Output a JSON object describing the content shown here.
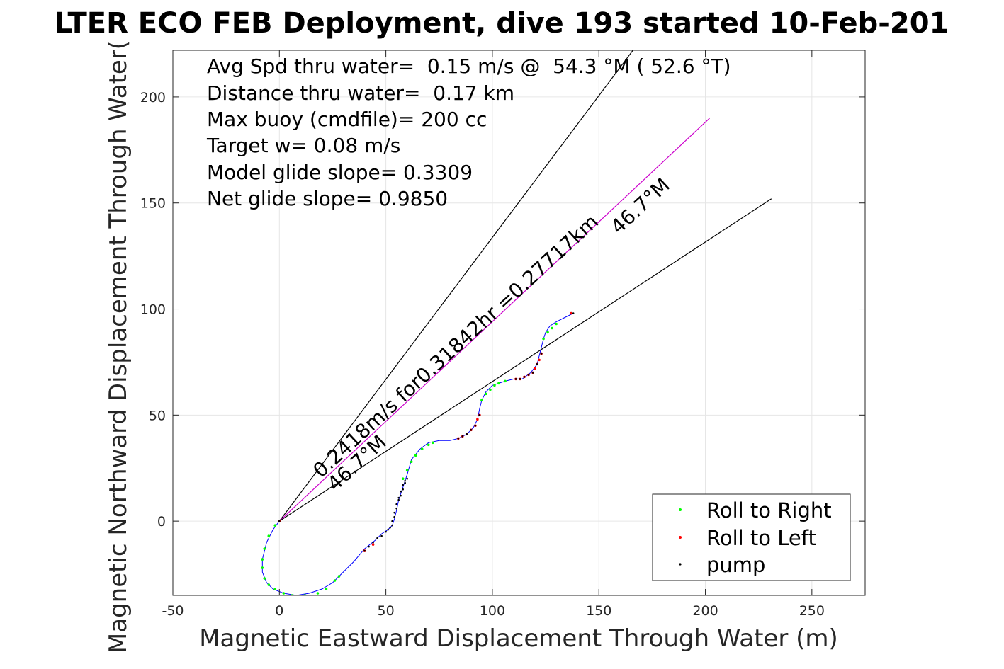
{
  "chart_data": {
    "type": "line",
    "title": "LTER ECO FEB Deployment, dive 193 started 10-Feb-201",
    "xlabel": "Magnetic Eastward Displacement Through Water (m)",
    "ylabel": "Magnetic Northward Displacement Through Water(",
    "xlim": [
      -50,
      275
    ],
    "ylim": [
      -35,
      222
    ],
    "x_ticks": [
      -50,
      0,
      50,
      100,
      150,
      200,
      250
    ],
    "x_tick_labels": [
      "-50",
      "0",
      "50",
      "100",
      "150",
      "200",
      "250"
    ],
    "y_ticks": [
      0,
      50,
      100,
      150,
      200
    ],
    "y_tick_labels": [
      "0",
      "50",
      "100",
      "150",
      "200"
    ],
    "grid": true,
    "legend_position": "bottom-right",
    "info_lines": [
      "Avg Spd thru water=  0.15 m/s @  54.3 °M ( 52.6 °T)",
      "Distance thru water=  0.17 km",
      "Max buoy (cmdfile)= 200 cc",
      "Target w= 0.08 m/s",
      "Model glide slope= 0.3309",
      "Net glide slope= 0.9850"
    ],
    "annotations": {
      "track_speed": "0.2418m/s for0.31842hr =0.27717km",
      "heading_lower": "46.7°M",
      "heading_upper": "46.7°M"
    },
    "reference_lines": [
      {
        "color": "#000000",
        "x": [
          0,
          166
        ],
        "y": [
          0,
          222
        ]
      },
      {
        "color": "#cc00cc",
        "x": [
          0,
          202
        ],
        "y": [
          0,
          190
        ]
      },
      {
        "color": "#000000",
        "x": [
          0,
          231
        ],
        "y": [
          0,
          152
        ]
      }
    ],
    "track": {
      "color": "#0000ff",
      "x": [
        0,
        -3,
        -6,
        -8,
        -8,
        -6,
        -3,
        2,
        8,
        14,
        20,
        25,
        30,
        35,
        40,
        45,
        48,
        51,
        53,
        54,
        55,
        56,
        58,
        60,
        62,
        66,
        70,
        75,
        80,
        84,
        88,
        91,
        93,
        94,
        95,
        97,
        100,
        103,
        106,
        110,
        114,
        118,
        121,
        122,
        123,
        124,
        125,
        127,
        130,
        134,
        138
      ],
      "y": [
        0,
        -4,
        -10,
        -18,
        -24,
        -29,
        -32,
        -34,
        -35,
        -34,
        -32,
        -29,
        -24,
        -19,
        -13,
        -9,
        -6,
        -4,
        -2,
        1,
        5,
        10,
        16,
        22,
        29,
        34,
        37,
        38,
        38,
        39,
        41,
        44,
        48,
        53,
        57,
        61,
        64,
        65,
        66,
        67,
        67,
        70,
        74,
        78,
        82,
        86,
        89,
        92,
        94,
        96,
        98
      ]
    },
    "series": [
      {
        "name": "Roll to Right",
        "color": "#00ff00",
        "x": [
          -2,
          -5,
          -7,
          -8,
          -8,
          -7,
          -5,
          -2,
          2,
          6,
          12,
          18,
          22,
          26,
          28,
          58,
          60,
          62,
          64,
          67,
          70,
          72,
          95,
          97,
          99,
          101,
          103,
          106,
          124,
          126,
          128,
          130
        ],
        "y": [
          -2,
          -7,
          -13,
          -18,
          -22,
          -27,
          -30,
          -32,
          -34,
          -35,
          -35,
          -34,
          -32,
          -28,
          -26,
          20,
          24,
          28,
          31,
          34,
          36,
          37,
          57,
          60,
          62,
          64,
          65,
          66,
          86,
          89,
          91,
          93
        ]
      },
      {
        "name": "Roll to Left",
        "color": "#ff0000",
        "x": [
          0,
          40,
          44,
          84,
          86,
          88,
          90,
          92,
          93,
          94,
          111,
          113,
          115,
          117,
          119,
          120,
          121,
          122,
          123,
          137
        ],
        "y": [
          0,
          -14,
          -11,
          39,
          40,
          41,
          43,
          45,
          48,
          50,
          67,
          67,
          68,
          69,
          70,
          72,
          74,
          76,
          79,
          98
        ]
      },
      {
        "name": "pump",
        "color": "#000000",
        "x": [
          0,
          40,
          42,
          44,
          46,
          48,
          50,
          51,
          52,
          53,
          53,
          54,
          54,
          55,
          55,
          56,
          56,
          57,
          57,
          58,
          58,
          59,
          59,
          60,
          84,
          86,
          88,
          90,
          92,
          94,
          111,
          113,
          115,
          117,
          119,
          121,
          123,
          138
        ],
        "y": [
          0,
          -14,
          -12,
          -10,
          -8,
          -7,
          -5,
          -4,
          -3,
          -2,
          0,
          2,
          4,
          6,
          8,
          10,
          11,
          12,
          14,
          15,
          17,
          18,
          19,
          20,
          39,
          40,
          41,
          43,
          45,
          50,
          67,
          67,
          68,
          69,
          70,
          74,
          79,
          98
        ]
      }
    ]
  }
}
